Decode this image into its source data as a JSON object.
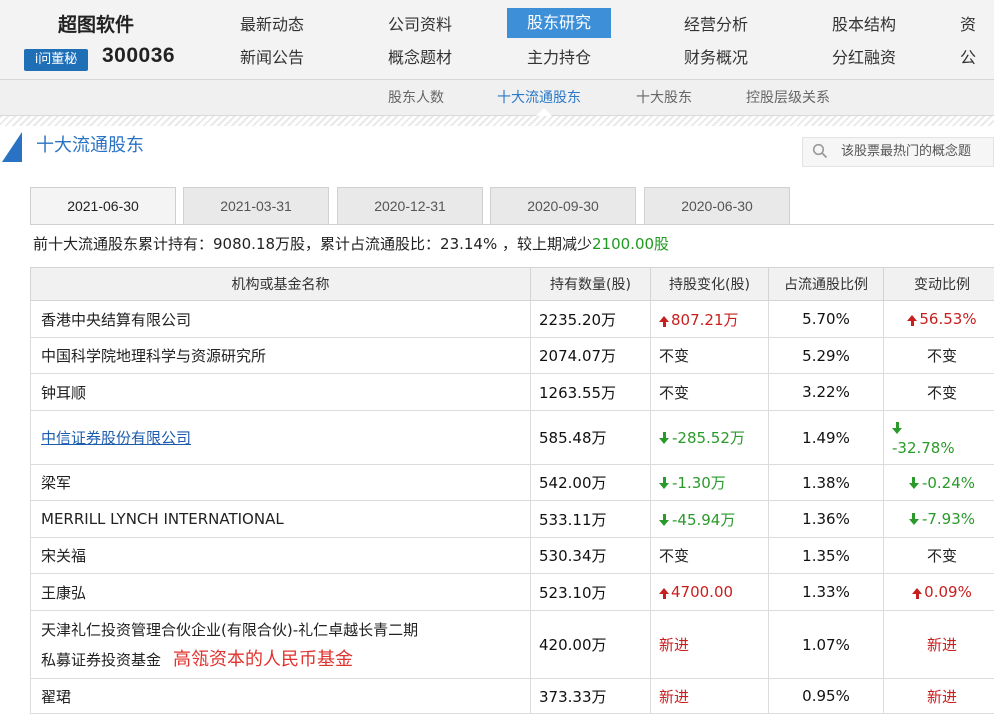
{
  "brand": {
    "name": "超图软件",
    "badge": "i问董秘",
    "code": "300036"
  },
  "nav": {
    "row1": [
      "最新动态",
      "公司资料",
      "股东研究",
      "经营分析",
      "股本结构",
      "资"
    ],
    "row2": [
      "新闻公告",
      "概念题材",
      "主力持仓",
      "财务概况",
      "分红融资",
      "公"
    ]
  },
  "subnav": [
    "股东人数",
    "十大流通股东",
    "十大股东",
    "控股层级关系"
  ],
  "section_title": "十大流通股东",
  "search_hint": "该股票最热门的概念题",
  "tabs": [
    "2021-06-30",
    "2021-03-31",
    "2020-12-31",
    "2020-09-30",
    "2020-06-30"
  ],
  "summary": {
    "text": "前十大流通股东累计持有：9080.18万股，累计占流通股比：23.14% ，较上期减少",
    "highlight": "2100.00股"
  },
  "table": {
    "headers": [
      "机构或基金名称",
      "持有数量(股)",
      "持股变化(股)",
      "占流通股比例",
      "变动比例"
    ],
    "rows": [
      {
        "name": "香港中央结算有限公司",
        "qty": "2235.20万",
        "change": "807.21万",
        "change_dir": "up",
        "pct": "5.70%",
        "ratio": "56.53%",
        "ratio_dir": "up"
      },
      {
        "name": "中国科学院地理科学与资源研究所",
        "qty": "2074.07万",
        "change": "不变",
        "change_dir": "none",
        "pct": "5.29%",
        "ratio": "不变",
        "ratio_dir": "none"
      },
      {
        "name": "钟耳顺",
        "qty": "1263.55万",
        "change": "不变",
        "change_dir": "none",
        "pct": "3.22%",
        "ratio": "不变",
        "ratio_dir": "none"
      },
      {
        "name": "中信证券股份有限公司",
        "qty": "585.48万",
        "change": "-285.52万",
        "change_dir": "down",
        "pct": "1.49%",
        "ratio": "-32.78%",
        "ratio_dir": "down"
      },
      {
        "name": "梁军",
        "qty": "542.00万",
        "change": "-1.30万",
        "change_dir": "down",
        "pct": "1.38%",
        "ratio": "-0.24%",
        "ratio_dir": "down"
      },
      {
        "name": "MERRILL LYNCH INTERNATIONAL",
        "qty": "533.11万",
        "change": "-45.94万",
        "change_dir": "down",
        "pct": "1.36%",
        "ratio": "-7.93%",
        "ratio_dir": "down"
      },
      {
        "name": "宋关福",
        "qty": "530.34万",
        "change": "不变",
        "change_dir": "none",
        "pct": "1.35%",
        "ratio": "不变",
        "ratio_dir": "none"
      },
      {
        "name": "王康弘",
        "qty": "523.10万",
        "change": "4700.00",
        "change_dir": "up",
        "pct": "1.33%",
        "ratio": "0.09%",
        "ratio_dir": "up"
      },
      {
        "name": "天津礼仁投资管理合伙企业(有限合伙)-礼仁卓越长青二期",
        "name_line2": "私募证券投资基金",
        "annotation": "高瓴资本的人民币基金",
        "qty": "420.00万",
        "change": "新进",
        "change_dir": "new",
        "pct": "1.07%",
        "ratio": "新进",
        "ratio_dir": "new"
      },
      {
        "name": "翟珺",
        "qty": "373.33万",
        "change": "新进",
        "change_dir": "new",
        "pct": "0.95%",
        "ratio": "新进",
        "ratio_dir": "new"
      }
    ]
  },
  "colors": {
    "accent": "#3d8fd8",
    "up": "#c81e1e",
    "down": "#2a9a2a",
    "link": "#1b5cae",
    "annotation": "#e2322d"
  }
}
